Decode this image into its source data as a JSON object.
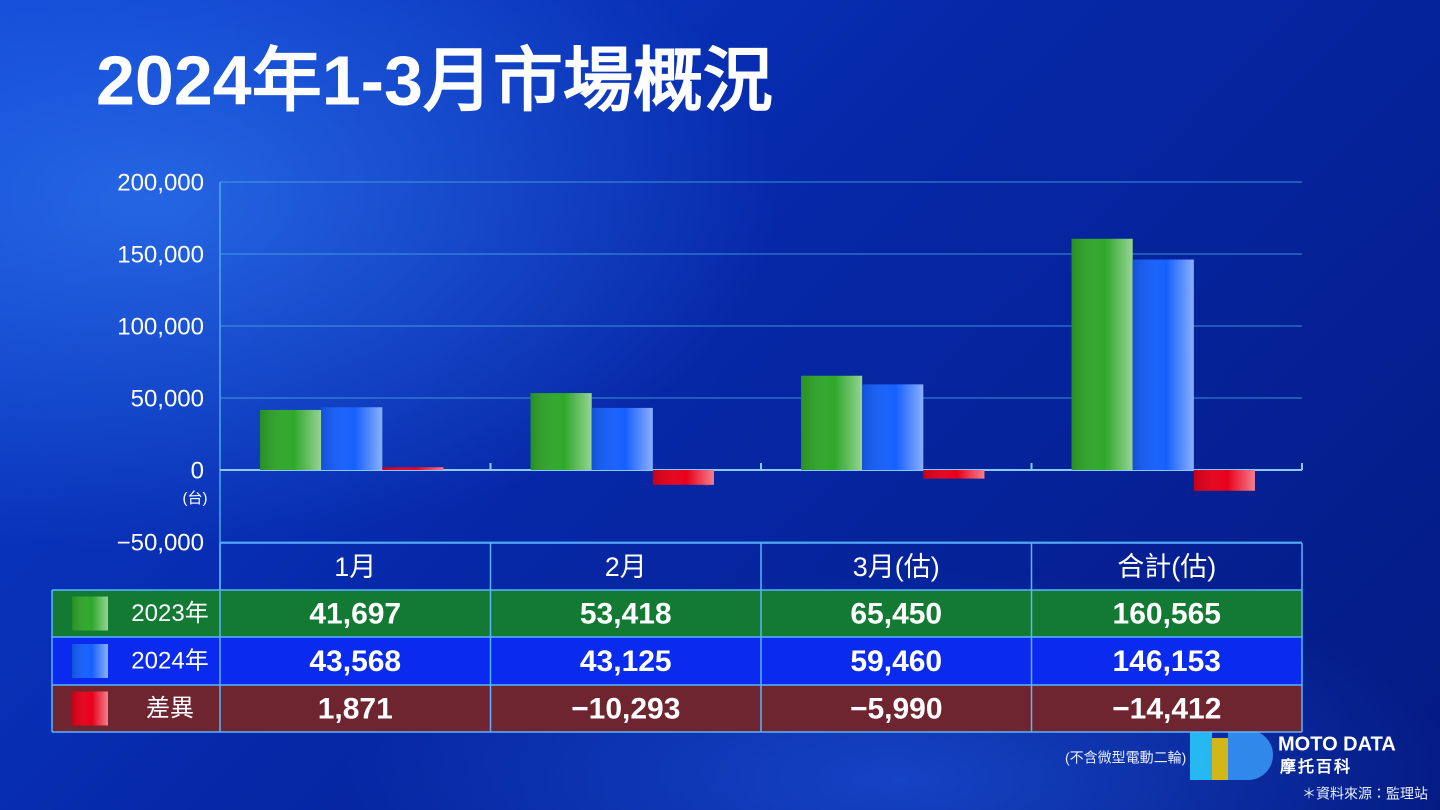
{
  "chart_data": {
    "type": "bar",
    "title": "2024年1-3月市場概況",
    "unit_label": "(台)",
    "categories": [
      "1月",
      "2月",
      "3月(估)",
      "合計(估)"
    ],
    "series": [
      {
        "name": "2023年",
        "color": "#2fa82a",
        "row_color": "#127a32",
        "values": [
          41697,
          53418,
          65450,
          160565
        ],
        "value_labels": [
          "41,697",
          "53,418",
          "65,450",
          "160,565"
        ]
      },
      {
        "name": "2024年",
        "color": "#1560ff",
        "row_color": "#0a2af0",
        "values": [
          43568,
          43125,
          59460,
          146153
        ],
        "value_labels": [
          "43,568",
          "43,125",
          "59,460",
          "146,153"
        ]
      },
      {
        "name": "差異",
        "color": "#e8001a",
        "row_color": "#6e2530",
        "values": [
          1871,
          -10293,
          -5990,
          -14412
        ],
        "value_labels": [
          "1,871",
          "−10,293",
          "−5,990",
          "−14,412"
        ]
      }
    ],
    "ylim": [
      -50000,
      200000
    ],
    "yticks": [
      {
        "value": -50000,
        "label": "−50,000"
      },
      0,
      {
        "value": 50000,
        "label": "50,000"
      },
      {
        "value": 100000,
        "label": "100,000"
      },
      {
        "value": 150000,
        "label": "150,000"
      },
      {
        "value": 200000,
        "label": "200,000"
      }
    ],
    "grid": true,
    "note": "(不含微型電動二輪)",
    "source": "＊資料來源：監理站"
  },
  "brand": {
    "name": "MOTO DATA",
    "subtitle": "摩托百科"
  }
}
